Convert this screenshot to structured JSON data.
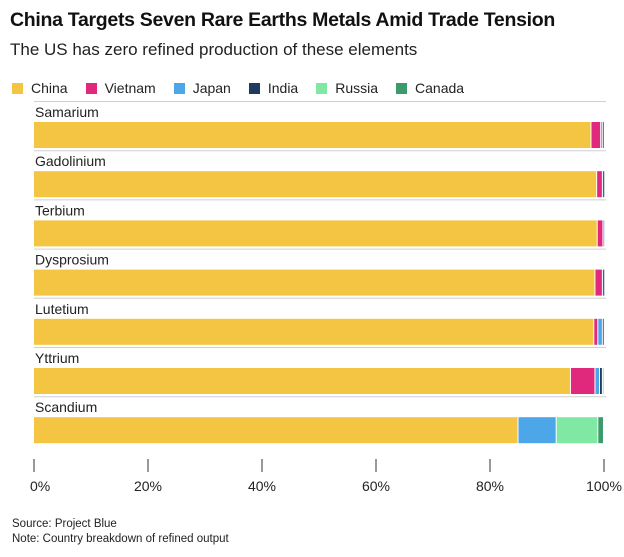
{
  "chart_data": {
    "type": "bar",
    "orientation": "horizontal",
    "stacked": true,
    "title": "China Targets Seven Rare Earths Metals Amid Trade Tension",
    "subtitle": "The US has zero refined production of these elements",
    "categories": [
      "Samarium",
      "Gadolinium",
      "Terbium",
      "Dysprosium",
      "Lutetium",
      "Yttrium",
      "Scandium"
    ],
    "series": [
      {
        "name": "China",
        "color": "#F4C542",
        "values": [
          97.8,
          98.8,
          98.9,
          98.5,
          98.3,
          94.2,
          85.0
        ]
      },
      {
        "name": "Vietnam",
        "color": "#E0287D",
        "values": [
          1.7,
          1.0,
          1.0,
          1.3,
          0.7,
          4.3,
          0.0
        ]
      },
      {
        "name": "Japan",
        "color": "#4DA6E8",
        "values": [
          0.3,
          0.1,
          0.1,
          0.1,
          0.8,
          0.8,
          6.7
        ]
      },
      {
        "name": "India",
        "color": "#1F3A5F",
        "values": [
          0.2,
          0.1,
          0.0,
          0.1,
          0.2,
          0.5,
          0.0
        ]
      },
      {
        "name": "Russia",
        "color": "#7FE8A2",
        "values": [
          0.0,
          0.0,
          0.0,
          0.0,
          0.0,
          0.2,
          7.3
        ]
      },
      {
        "name": "Canada",
        "color": "#3C9A6B",
        "values": [
          0.0,
          0.0,
          0.0,
          0.0,
          0.0,
          0.0,
          1.0
        ]
      }
    ],
    "xlim": [
      0,
      100
    ],
    "xticks": [
      0,
      20,
      40,
      60,
      80,
      100
    ],
    "xtick_labels": [
      "0%",
      "20%",
      "40%",
      "60%",
      "80%",
      "100%"
    ],
    "legend_position": "top-left"
  },
  "footnote": {
    "source": "Source: Project Blue",
    "note": "Note: Country breakdown of refined output"
  }
}
